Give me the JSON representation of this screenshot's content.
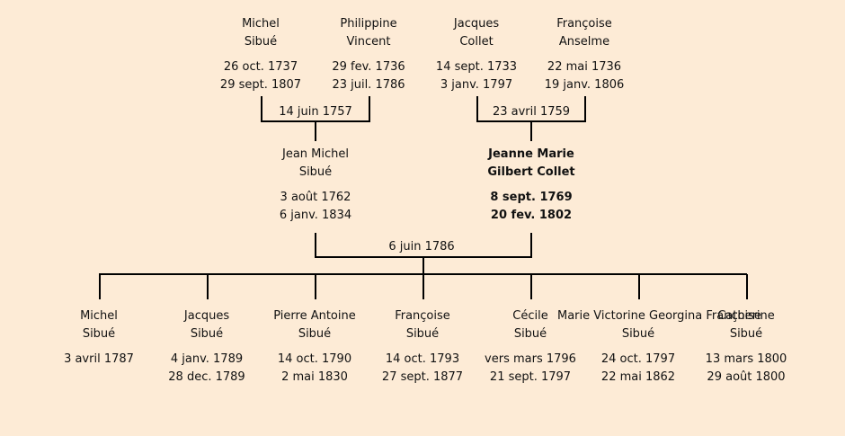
{
  "grandparents": [
    {
      "id": "gp1",
      "first": "Michel",
      "last": "Sibué",
      "birth": "26 oct. 1737",
      "death": "29 sept. 1807"
    },
    {
      "id": "gp2",
      "first": "Philippine",
      "last": "Vincent",
      "birth": "29 fev. 1736",
      "death": "23 juil. 1786"
    },
    {
      "id": "gp3",
      "first": "Jacques",
      "last": "Collet",
      "birth": "14 sept. 1733",
      "death": "3 janv. 1797"
    },
    {
      "id": "gp4",
      "first": "Françoise",
      "last": "Anselme",
      "birth": "22 mai 1736",
      "death": "19 janv. 1806"
    }
  ],
  "grandparent_marriages": [
    "14 juin 1757",
    "23 avril 1759"
  ],
  "parents": [
    {
      "id": "p1",
      "first": "Jean Michel",
      "last": "Sibué",
      "birth": "3 août 1762",
      "death": "6 janv. 1834",
      "focus": false
    },
    {
      "id": "p2",
      "first": "Jeanne Marie",
      "last": "Gilbert Collet",
      "birth": "8 sept. 1769",
      "death": "20 fev. 1802",
      "focus": true
    }
  ],
  "parent_marriage": "6 juin 1786",
  "children": [
    {
      "id": "c1",
      "first": "Michel",
      "last": "Sibué",
      "birth": "3 avril 1787",
      "death": ""
    },
    {
      "id": "c2",
      "first": "Jacques",
      "last": "Sibué",
      "birth": "4 janv. 1789",
      "death": "28 dec. 1789"
    },
    {
      "id": "c3",
      "first": "Pierre Antoine",
      "last": "Sibué",
      "birth": "14 oct. 1790",
      "death": "2 mai 1830"
    },
    {
      "id": "c4",
      "first": "Françoise",
      "last": "Sibué",
      "birth": "14 oct. 1793",
      "death": "27 sept. 1877"
    },
    {
      "id": "c5",
      "first": "Cécile",
      "last": "Sibué",
      "birth": "vers mars 1796",
      "death": "21 sept. 1797"
    },
    {
      "id": "c6",
      "first": "Marie Victorine Georgina Françoise",
      "last": "Sibué",
      "birth": "24 oct. 1797",
      "death": "22 mai 1862"
    },
    {
      "id": "c7",
      "first": "Catherine",
      "last": "Sibué",
      "birth": "13 mars 1800",
      "death": "29 août 1800"
    }
  ]
}
